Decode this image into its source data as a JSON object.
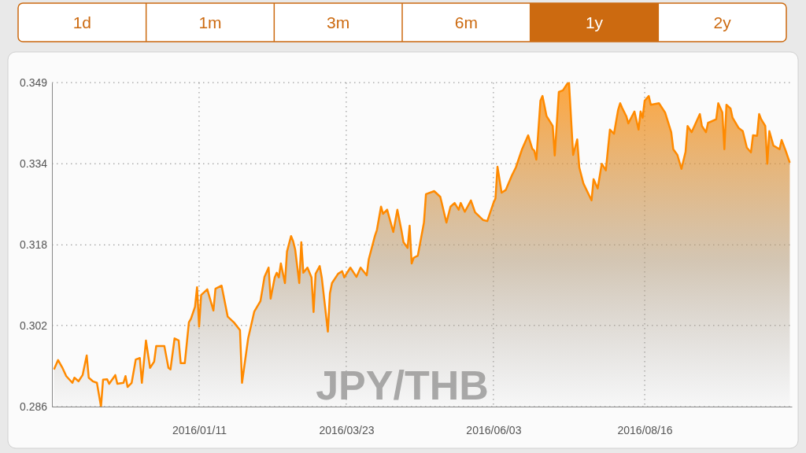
{
  "chart_data": {
    "type": "area",
    "title": "JPY/THB",
    "annotations": [
      "1d",
      "1m",
      "3m",
      "6m",
      "1y",
      "2y"
    ],
    "xlim": [
      "2015-10-31",
      "2016-10-27"
    ],
    "xticks": [
      {
        "value": "2016-01-11",
        "label": "2016/01/11"
      },
      {
        "value": "2016-03-23",
        "label": "2016/03/23"
      },
      {
        "value": "2016-06-03",
        "label": "2016/06/03"
      },
      {
        "value": "2016-08-16",
        "label": "2016/08/16"
      }
    ],
    "ylim": [
      0.2865,
      0.3492
    ],
    "yticks": [
      {
        "value": 0.2865,
        "label": "0.286"
      },
      {
        "value": 0.3022,
        "label": "0.302"
      },
      {
        "value": 0.3178,
        "label": "0.318"
      },
      {
        "value": 0.3335,
        "label": "0.334"
      },
      {
        "value": 0.3492,
        "label": "0.349"
      }
    ],
    "grid": true,
    "series": [
      {
        "color": "#ff8a00",
        "x": [
          "2015-11-01",
          "2015-11-03",
          "2015-11-05",
          "2015-11-07",
          "2015-11-10",
          "2015-11-11",
          "2015-11-13",
          "2015-11-15",
          "2015-11-17",
          "2015-11-18",
          "2015-11-20",
          "2015-11-22",
          "2015-11-24",
          "2015-11-25",
          "2015-11-27",
          "2015-11-28",
          "2015-12-01",
          "2015-12-02",
          "2015-12-05",
          "2015-12-06",
          "2015-12-07",
          "2015-12-09",
          "2015-12-11",
          "2015-12-13",
          "2015-12-14",
          "2015-12-16",
          "2015-12-18",
          "2015-12-20",
          "2015-12-21",
          "2015-12-25",
          "2015-12-27",
          "2015-12-28",
          "2015-12-30",
          "2016-01-01",
          "2016-01-02",
          "2016-01-04",
          "2016-01-06",
          "2016-01-07",
          "2016-01-09",
          "2016-01-10",
          "2016-01-11",
          "2016-01-12",
          "2016-01-15",
          "2016-01-18",
          "2016-01-19",
          "2016-01-22",
          "2016-01-25",
          "2016-01-28",
          "2016-01-31",
          "2016-02-01",
          "2016-02-04",
          "2016-02-07",
          "2016-02-10",
          "2016-02-12",
          "2016-02-14",
          "2016-02-15",
          "2016-02-17",
          "2016-02-18",
          "2016-02-19",
          "2016-02-20",
          "2016-02-22",
          "2016-02-23",
          "2016-02-25",
          "2016-02-26",
          "2016-02-27",
          "2016-02-29",
          "2016-03-01",
          "2016-03-02",
          "2016-03-04",
          "2016-03-06",
          "2016-03-07",
          "2016-03-08",
          "2016-03-10",
          "2016-03-11",
          "2016-03-14",
          "2016-03-15",
          "2016-03-16",
          "2016-03-19",
          "2016-03-21",
          "2016-03-22",
          "2016-03-25",
          "2016-03-28",
          "2016-03-30",
          "2016-04-02",
          "2016-04-03",
          "2016-04-06",
          "2016-04-07",
          "2016-04-09",
          "2016-04-10",
          "2016-04-12",
          "2016-04-15",
          "2016-04-17",
          "2016-04-19",
          "2016-04-20",
          "2016-04-22",
          "2016-04-23",
          "2016-04-24",
          "2016-04-25",
          "2016-04-27",
          "2016-04-30",
          "2016-05-01",
          "2016-05-05",
          "2016-05-08",
          "2016-05-11",
          "2016-05-13",
          "2016-05-15",
          "2016-05-17",
          "2016-05-18",
          "2016-05-20",
          "2016-05-23",
          "2016-05-25",
          "2016-05-29",
          "2016-05-31",
          "2016-06-03",
          "2016-06-04",
          "2016-06-05",
          "2016-06-07",
          "2016-06-09",
          "2016-06-12",
          "2016-06-14",
          "2016-06-17",
          "2016-06-20",
          "2016-06-22",
          "2016-06-23",
          "2016-06-24",
          "2016-06-26",
          "2016-06-27",
          "2016-06-29",
          "2016-07-02",
          "2016-07-03",
          "2016-07-05",
          "2016-07-07",
          "2016-07-09",
          "2016-07-10",
          "2016-07-12",
          "2016-07-14",
          "2016-07-15",
          "2016-07-17",
          "2016-07-21",
          "2016-07-22",
          "2016-07-24",
          "2016-07-26",
          "2016-07-28",
          "2016-07-30",
          "2016-08-01",
          "2016-08-03",
          "2016-08-04",
          "2016-08-05",
          "2016-08-07",
          "2016-08-08",
          "2016-08-11",
          "2016-08-13",
          "2016-08-14",
          "2016-08-15",
          "2016-08-16",
          "2016-08-18",
          "2016-08-19",
          "2016-08-23",
          "2016-08-26",
          "2016-08-29",
          "2016-08-30",
          "2016-09-01",
          "2016-09-03",
          "2016-09-05",
          "2016-09-06",
          "2016-09-08",
          "2016-09-12",
          "2016-09-13",
          "2016-09-15",
          "2016-09-16",
          "2016-09-20",
          "2016-09-21",
          "2016-09-23",
          "2016-09-24",
          "2016-09-25",
          "2016-09-27",
          "2016-09-28",
          "2016-10-01",
          "2016-10-03",
          "2016-10-05",
          "2016-10-07",
          "2016-10-08",
          "2016-10-10",
          "2016-10-11",
          "2016-10-12",
          "2016-10-14",
          "2016-10-15",
          "2016-10-16",
          "2016-10-18",
          "2016-10-21",
          "2016-10-22",
          "2016-10-24",
          "2016-10-26"
        ],
        "values": [
          0.2937,
          0.2955,
          0.2941,
          0.2924,
          0.2911,
          0.2921,
          0.2914,
          0.2926,
          0.2964,
          0.2921,
          0.2914,
          0.2911,
          0.2865,
          0.2917,
          0.2918,
          0.2909,
          0.2926,
          0.2909,
          0.2911,
          0.2924,
          0.2903,
          0.2911,
          0.2956,
          0.2959,
          0.2911,
          0.2993,
          0.294,
          0.2952,
          0.2982,
          0.2982,
          0.294,
          0.2937,
          0.2997,
          0.2993,
          0.2949,
          0.2949,
          0.3028,
          0.3035,
          0.3058,
          0.3096,
          0.302,
          0.3081,
          0.3092,
          0.3051,
          0.3093,
          0.3099,
          0.3039,
          0.3028,
          0.3013,
          0.2911,
          0.2997,
          0.3049,
          0.3069,
          0.3116,
          0.3134,
          0.3074,
          0.3115,
          0.3124,
          0.3115,
          0.3142,
          0.3104,
          0.3165,
          0.3195,
          0.3185,
          0.3169,
          0.3104,
          0.3183,
          0.3124,
          0.3134,
          0.3115,
          0.3048,
          0.3122,
          0.3137,
          0.3115,
          0.301,
          0.3084,
          0.3104,
          0.3122,
          0.3127,
          0.3115,
          0.3134,
          0.3116,
          0.3134,
          0.3119,
          0.315,
          0.3195,
          0.3207,
          0.3252,
          0.3238,
          0.3246,
          0.3203,
          0.3246,
          0.3206,
          0.3183,
          0.3172,
          0.3215,
          0.3142,
          0.3153,
          0.3157,
          0.3221,
          0.3276,
          0.3282,
          0.3271,
          0.3221,
          0.3252,
          0.3259,
          0.3246,
          0.3259,
          0.3242,
          0.3264,
          0.3241,
          0.3226,
          0.3224,
          0.3259,
          0.3268,
          0.3329,
          0.3279,
          0.3284,
          0.3312,
          0.3328,
          0.3363,
          0.339,
          0.3364,
          0.336,
          0.3343,
          0.3457,
          0.3466,
          0.3427,
          0.3408,
          0.3351,
          0.3474,
          0.3477,
          0.3489,
          0.3491,
          0.3352,
          0.3382,
          0.3328,
          0.3297,
          0.3264,
          0.3305,
          0.3287,
          0.3335,
          0.3322,
          0.3401,
          0.3393,
          0.3439,
          0.3452,
          0.3443,
          0.3427,
          0.3413,
          0.3436,
          0.3401,
          0.3436,
          0.3424,
          0.3457,
          0.3466,
          0.3449,
          0.3452,
          0.3434,
          0.3396,
          0.3363,
          0.3352,
          0.3325,
          0.3358,
          0.3408,
          0.3396,
          0.3431,
          0.3408,
          0.3396,
          0.3414,
          0.3421,
          0.3452,
          0.3434,
          0.3363,
          0.3449,
          0.3442,
          0.3424,
          0.3404,
          0.3398,
          0.3366,
          0.3357,
          0.339,
          0.3389,
          0.3431,
          0.3421,
          0.3408,
          0.3335,
          0.3398,
          0.337,
          0.3363,
          0.3381,
          0.336,
          0.3337
        ]
      }
    ]
  }
}
